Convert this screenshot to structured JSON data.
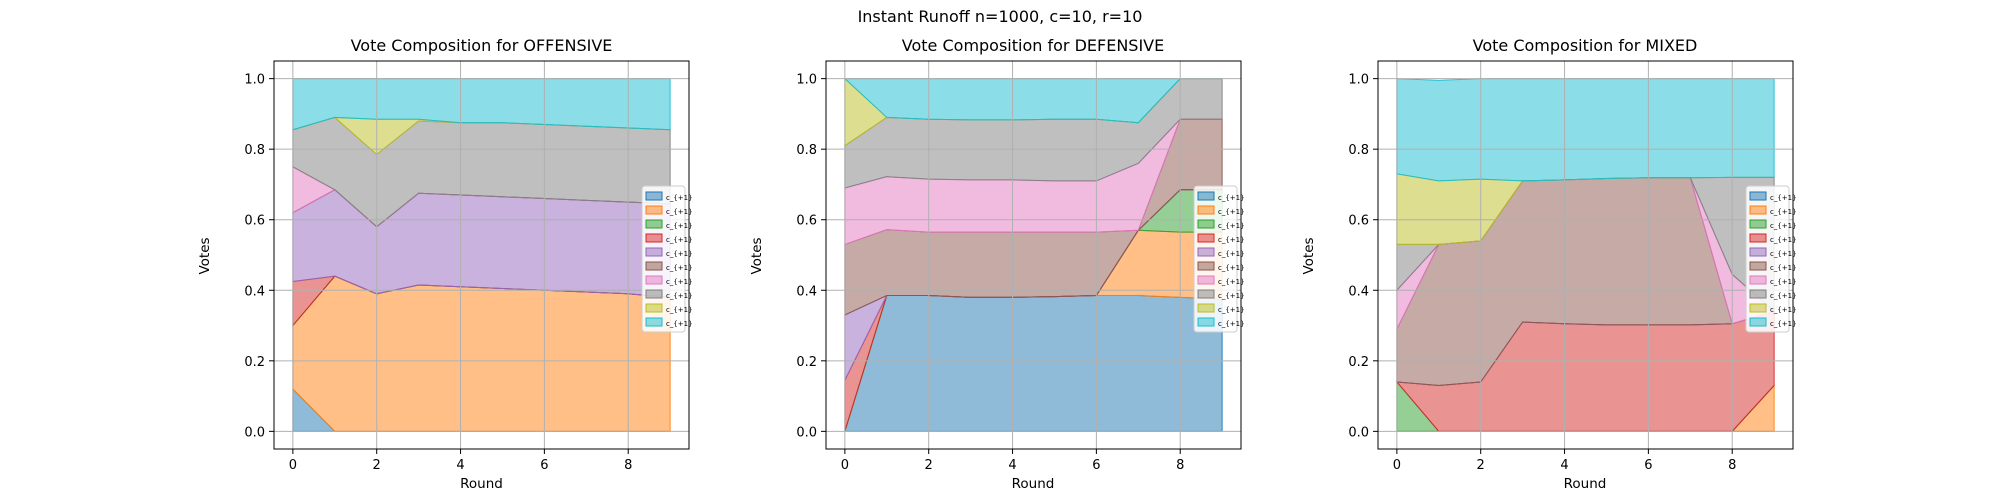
{
  "figure_title": "Instant Runoff n=1000, c=10, r=10",
  "legend_labels": [
    "c_{+1}",
    "c_{+1}",
    "c_{+1}",
    "c_{+1}",
    "c_{+1}",
    "c_{+1}",
    "c_{+1}",
    "c_{+1}",
    "c_{+1}",
    "c_{+1}"
  ],
  "colors": [
    "#1f77b4",
    "#ff7f0e",
    "#2ca02c",
    "#d62728",
    "#9467bd",
    "#8c564b",
    "#e377c2",
    "#7f7f7f",
    "#bcbd22",
    "#17becf"
  ],
  "chart_data": [
    {
      "type": "area",
      "title": "Vote Composition for OFFENSIVE",
      "xlabel": "Round",
      "ylabel": "Votes",
      "x": [
        0,
        1,
        2,
        3,
        4,
        5,
        6,
        7,
        8,
        9
      ],
      "xlim": [
        -0.45,
        9.45
      ],
      "ylim": [
        -0.05,
        1.05
      ],
      "xticks": [
        0,
        2,
        4,
        6,
        8
      ],
      "yticks": [
        0.0,
        0.2,
        0.4,
        0.6,
        0.8,
        1.0
      ],
      "grid": true,
      "legend_position": "center right",
      "series": [
        {
          "values": [
            0.12,
            0,
            0,
            0,
            0,
            0,
            0,
            0,
            0,
            0
          ]
        },
        {
          "values": [
            0.18,
            0.44,
            0.39,
            0.415,
            0.41,
            0.405,
            0.4,
            0.395,
            0.39,
            0.38
          ]
        },
        {
          "values": [
            0,
            0,
            0,
            0,
            0,
            0,
            0,
            0,
            0,
            0
          ]
        },
        {
          "values": [
            0.125,
            0,
            0,
            0,
            0,
            0,
            0,
            0,
            0,
            0
          ]
        },
        {
          "values": [
            0.195,
            0.245,
            0.19,
            0.26,
            0.26,
            0.26,
            0.26,
            0.26,
            0.26,
            0.265
          ]
        },
        {
          "values": [
            0,
            0,
            0,
            0,
            0,
            0,
            0,
            0,
            0,
            0
          ]
        },
        {
          "values": [
            0.13,
            0,
            0,
            0,
            0,
            0,
            0,
            0,
            0,
            0
          ]
        },
        {
          "values": [
            0.105,
            0.205,
            0.205,
            0.205,
            0.205,
            0.21,
            0.21,
            0.21,
            0.21,
            0.21
          ]
        },
        {
          "values": [
            0,
            0,
            0.1,
            0.005,
            0,
            0,
            0,
            0,
            0,
            0
          ]
        },
        {
          "values": [
            0.145,
            0.11,
            0.115,
            0.115,
            0.125,
            0.125,
            0.13,
            0.135,
            0.14,
            0.145
          ]
        }
      ]
    },
    {
      "type": "area",
      "title": "Vote Composition for DEFENSIVE",
      "xlabel": "Round",
      "ylabel": "Votes",
      "x": [
        0,
        1,
        2,
        3,
        4,
        5,
        6,
        7,
        8,
        9
      ],
      "xlim": [
        -0.45,
        9.45
      ],
      "ylim": [
        -0.05,
        1.05
      ],
      "xticks": [
        0,
        2,
        4,
        6,
        8
      ],
      "yticks": [
        0.0,
        0.2,
        0.4,
        0.6,
        0.8,
        1.0
      ],
      "grid": true,
      "legend_position": "center right",
      "series": [
        {
          "values": [
            0,
            0.385,
            0.385,
            0.38,
            0.38,
            0.382,
            0.385,
            0.385,
            0.38,
            0.375
          ]
        },
        {
          "values": [
            0,
            0,
            0,
            0,
            0,
            0,
            0,
            0.185,
            0.185,
            0.19
          ]
        },
        {
          "values": [
            0,
            0,
            0,
            0,
            0,
            0,
            0,
            0,
            0.12,
            0.12
          ]
        },
        {
          "values": [
            0.145,
            0,
            0,
            0,
            0,
            0,
            0,
            0,
            0,
            0
          ]
        },
        {
          "values": [
            0.185,
            0,
            0,
            0,
            0,
            0,
            0,
            0,
            0,
            0
          ]
        },
        {
          "values": [
            0.2,
            0.187,
            0.18,
            0.185,
            0.185,
            0.183,
            0.18,
            0,
            0.2,
            0.2
          ]
        },
        {
          "values": [
            0.16,
            0.15,
            0.15,
            0.148,
            0.148,
            0.145,
            0.145,
            0.19,
            0,
            0
          ]
        },
        {
          "values": [
            0.12,
            0.168,
            0.17,
            0.17,
            0.17,
            0.175,
            0.175,
            0.115,
            0.115,
            0.115
          ]
        },
        {
          "values": [
            0.19,
            0,
            0,
            0,
            0,
            0,
            0,
            0,
            0,
            0
          ]
        },
        {
          "values": [
            0,
            0.11,
            0.115,
            0.117,
            0.117,
            0.115,
            0.115,
            0.125,
            0,
            0
          ]
        }
      ]
    },
    {
      "type": "area",
      "title": "Vote Composition for MIXED",
      "xlabel": "Round",
      "ylabel": "Votes",
      "x": [
        0,
        1,
        2,
        3,
        4,
        5,
        6,
        7,
        8,
        9
      ],
      "xlim": [
        -0.45,
        9.45
      ],
      "ylim": [
        -0.05,
        1.05
      ],
      "xticks": [
        0,
        2,
        4,
        6,
        8
      ],
      "yticks": [
        0.0,
        0.2,
        0.4,
        0.6,
        0.8,
        1.0
      ],
      "grid": true,
      "legend_position": "center right",
      "series": [
        {
          "values": [
            0,
            0,
            0,
            0,
            0,
            0,
            0,
            0,
            0,
            0
          ]
        },
        {
          "values": [
            0,
            0,
            0,
            0,
            0,
            0,
            0,
            0,
            0,
            0.13
          ]
        },
        {
          "values": [
            0.14,
            0,
            0,
            0,
            0,
            0,
            0,
            0,
            0,
            0
          ]
        },
        {
          "values": [
            0,
            0.13,
            0.14,
            0.31,
            0.305,
            0.302,
            0.302,
            0.302,
            0.305,
            0.21
          ]
        },
        {
          "values": [
            0,
            0,
            0,
            0,
            0,
            0,
            0,
            0,
            0,
            0
          ]
        },
        {
          "values": [
            0.15,
            0.4,
            0.4,
            0.4,
            0.408,
            0.415,
            0.417,
            0.417,
            0,
            0
          ]
        },
        {
          "values": [
            0.11,
            0,
            0,
            0,
            0,
            0,
            0,
            0,
            0.14,
            0
          ]
        },
        {
          "values": [
            0.13,
            0,
            0,
            0,
            0,
            0,
            0,
            0,
            0.275,
            0.38
          ]
        },
        {
          "values": [
            0.2,
            0.18,
            0.175,
            0,
            0,
            0,
            0,
            0,
            0,
            0
          ]
        },
        {
          "values": [
            0.27,
            0.285,
            0.285,
            0.29,
            0.287,
            0.283,
            0.281,
            0.281,
            0.28,
            0.28
          ]
        }
      ]
    }
  ]
}
